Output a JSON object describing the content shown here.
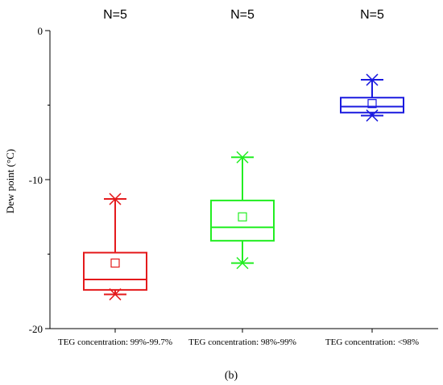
{
  "chart_data": {
    "type": "boxplot",
    "ylabel": "Dew point (°C)",
    "ylim": [
      -20,
      0
    ],
    "y_ticks": [
      0,
      -10,
      -20
    ],
    "y_minor_ticks": [
      -5,
      -15
    ],
    "grid": false,
    "caption": "(b)",
    "categories": [
      "TEG concentration: 99%-99.7%",
      "TEG concentration: 98%-99%",
      "TEG concentration: <98%"
    ],
    "n_labels": [
      "N=5",
      "N=5",
      "N=5"
    ],
    "series": [
      {
        "category": "TEG concentration: 99%-99.7%",
        "color": "#e41a1c",
        "max": -11.3,
        "q3": -14.9,
        "median": -16.7,
        "q1": -17.4,
        "min": -17.7,
        "mean": -15.6
      },
      {
        "category": "TEG concentration: 98%-99%",
        "color": "#22ee22",
        "max": -8.5,
        "q3": -11.4,
        "median": -13.2,
        "q1": -14.1,
        "min": -15.6,
        "mean": -12.5
      },
      {
        "category": "TEG concentration: <98%",
        "color": "#1a1adf",
        "max": -3.3,
        "q3": -4.5,
        "median": -5.1,
        "q1": -5.5,
        "min": -5.7,
        "mean": -4.9
      }
    ]
  }
}
